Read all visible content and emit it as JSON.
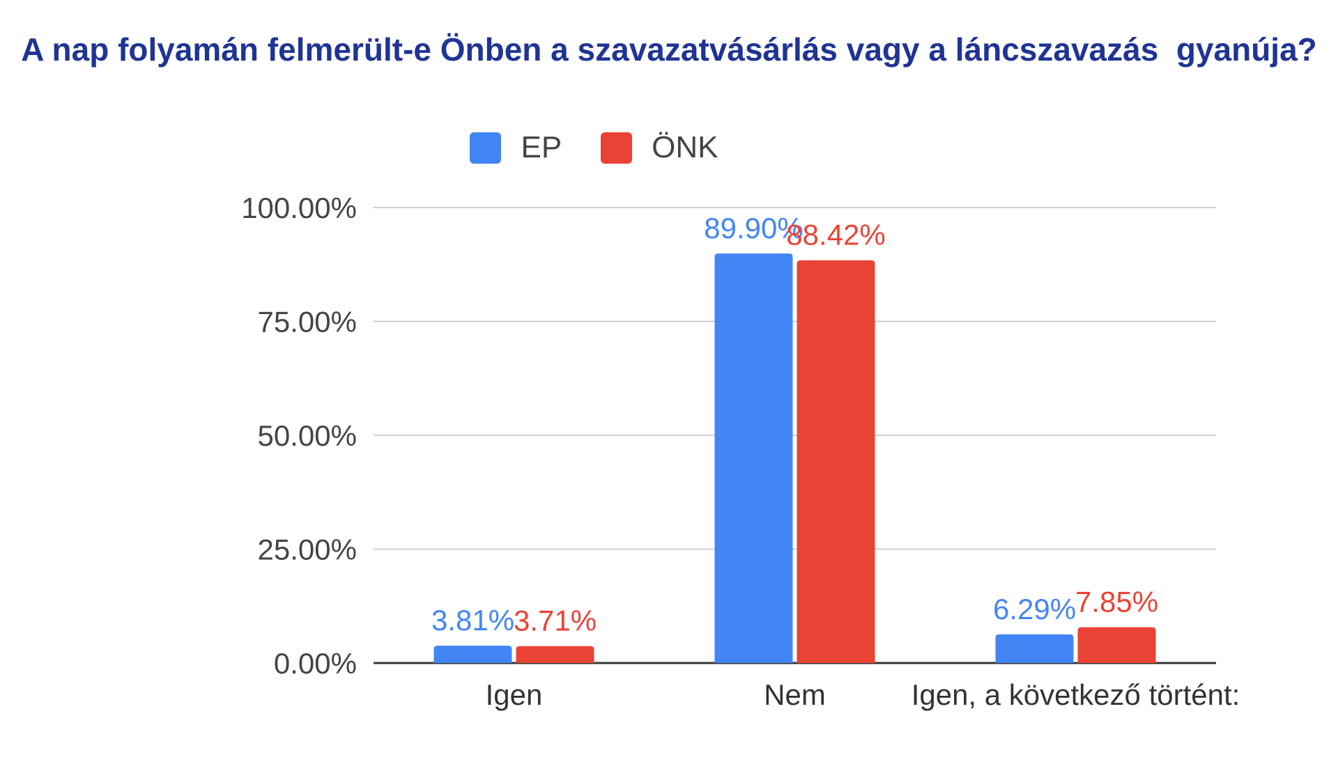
{
  "chart_data": {
    "type": "bar",
    "title": "A nap folyamán felmerült-e Önben a szavazatvásárlás vagy a láncszavazás  gyanúja?",
    "categories": [
      "Igen",
      "Nem",
      "Igen, a következő történt:"
    ],
    "series": [
      {
        "name": "EP",
        "color": "#4285f4",
        "values": [
          3.81,
          89.9,
          6.29
        ],
        "labels": [
          "3.81%",
          "89.90%",
          "6.29%"
        ]
      },
      {
        "name": "ÖNK",
        "color": "#ea4335",
        "values": [
          3.71,
          88.42,
          7.85
        ],
        "labels": [
          "3.71%",
          "88.42%",
          "7.85%"
        ]
      }
    ],
    "ylim": [
      0,
      100
    ],
    "yticks": [
      "0.00%",
      "25.00%",
      "50.00%",
      "75.00%",
      "100.00%"
    ],
    "ytick_values": [
      0,
      25,
      50,
      75,
      100
    ],
    "grid": true,
    "legend_position": "top"
  }
}
